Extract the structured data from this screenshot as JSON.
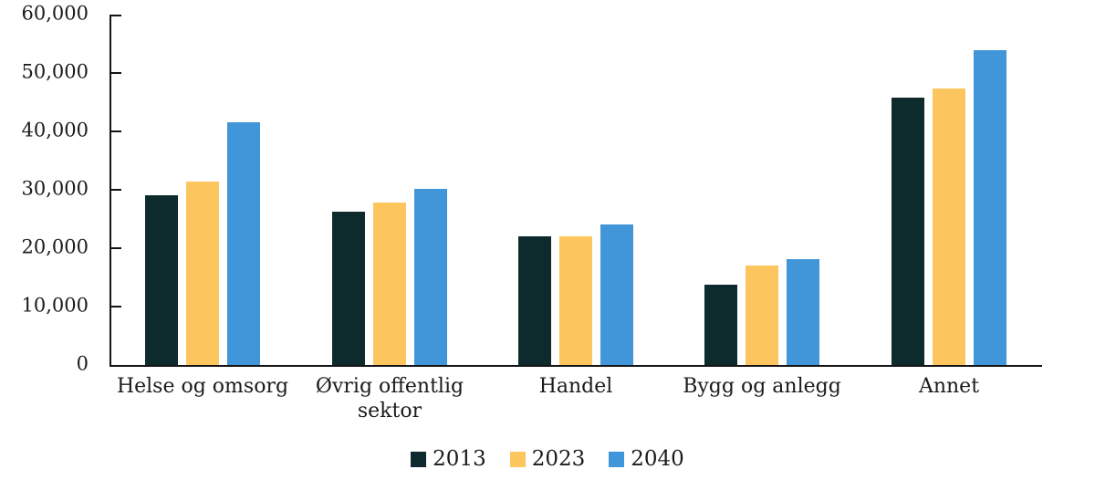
{
  "chart_data": {
    "type": "bar",
    "title": "",
    "categories": [
      "Helse og omsorg",
      "Øvrig offentlig sektor",
      "Handel",
      "Bygg og anlegg",
      "Annet"
    ],
    "series": [
      {
        "name": "2013",
        "color": "#0d2a2c",
        "values": [
          29000,
          26300,
          22100,
          13800,
          45800
        ]
      },
      {
        "name": "2023",
        "color": "#fdc55e",
        "values": [
          31400,
          27800,
          22000,
          17100,
          47300
        ]
      },
      {
        "name": "2040",
        "color": "#4096d8",
        "values": [
          41600,
          30100,
          24000,
          18200,
          53900
        ]
      }
    ],
    "ylabel": "",
    "xlabel": "",
    "ylim": [
      0,
      60000
    ],
    "ytick_step": 10000,
    "ytick_labels": [
      "60,000",
      "50,000",
      "40,000",
      "30,000",
      "20,000",
      "10,000",
      "0"
    ],
    "grid": false,
    "legend_position": "bottom",
    "axis_color": "#141414",
    "text_color": "#1b1b1b"
  }
}
